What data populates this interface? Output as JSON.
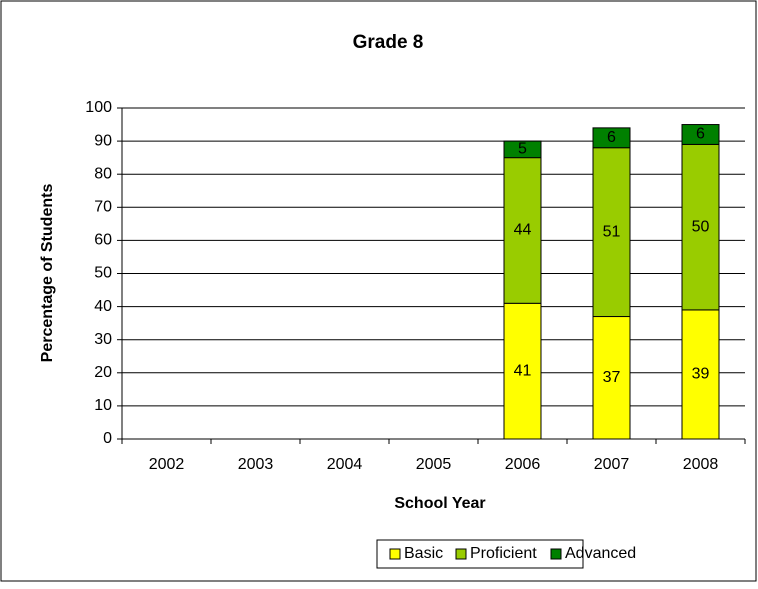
{
  "chart_data": {
    "type": "stacked_bar",
    "title": "Grade 8",
    "x_label": "School Year",
    "y_label": "Percentage of Students",
    "categories": [
      "2002",
      "2003",
      "2004",
      "2005",
      "2006",
      "2007",
      "2008"
    ],
    "series": [
      {
        "name": "Basic",
        "color": "#ffff00",
        "values": [
          null,
          null,
          null,
          null,
          41,
          37,
          39
        ]
      },
      {
        "name": "Proficient",
        "color": "#99cc00",
        "values": [
          null,
          null,
          null,
          null,
          44,
          51,
          50
        ]
      },
      {
        "name": "Advanced",
        "color": "#008000",
        "values": [
          null,
          null,
          null,
          null,
          5,
          6,
          6
        ]
      }
    ],
    "ylim": [
      0,
      100
    ],
    "yticks": [
      0,
      10,
      20,
      30,
      40,
      50,
      60,
      70,
      80,
      90,
      100
    ],
    "grid": true,
    "legend": "bottom"
  }
}
